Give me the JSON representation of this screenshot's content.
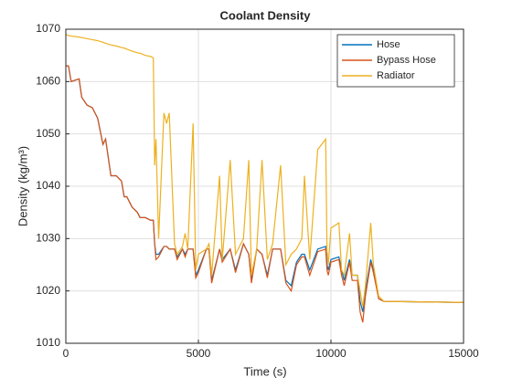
{
  "chart_data": {
    "type": "line",
    "title": "Coolant Density",
    "xlabel": "Time (s)",
    "ylabel": "Density (kg/m³)",
    "x": [
      0,
      100,
      200,
      500,
      600,
      800,
      1000,
      1200,
      1400,
      1500,
      1700,
      1900,
      2100,
      2200,
      2300,
      2400,
      2500,
      2700,
      2800,
      3000,
      3200,
      3300,
      3350,
      3400,
      3500,
      3700,
      3800,
      3900,
      4100,
      4200,
      4400,
      4500,
      4600,
      4800,
      4900,
      5000,
      5300,
      5400,
      5500,
      5800,
      5900,
      6200,
      6400,
      6700,
      6900,
      7000,
      7200,
      7400,
      7600,
      7800,
      8100,
      8300,
      8500,
      8700,
      8900,
      9000,
      9200,
      9500,
      9800,
      9850,
      9900,
      10000,
      10300,
      10400,
      10500,
      10700,
      10800,
      11000,
      11100,
      11200,
      11300,
      11500,
      11600,
      11800,
      12000,
      15000
    ],
    "series": [
      {
        "name": "Hose",
        "color": "#0072bd",
        "values": [
          1063,
          1063,
          1060,
          1060.5,
          1057,
          1055.5,
          1055,
          1053,
          1048,
          1049,
          1042,
          1042,
          1041,
          1038,
          1038,
          1037,
          1036,
          1035,
          1034,
          1034,
          1033.5,
          1033.5,
          1029,
          1027,
          1027,
          1028.5,
          1028.5,
          1028,
          1028,
          1026.5,
          1028,
          1027,
          1028,
          1028,
          1023,
          1024,
          1028,
          1028,
          1022,
          1028,
          1026,
          1028,
          1024,
          1029,
          1027,
          1022,
          1028,
          1027,
          1023,
          1028,
          1028,
          1022,
          1021,
          1025.5,
          1027,
          1027,
          1024,
          1028,
          1028.5,
          1025,
          1024,
          1026,
          1026.5,
          1024,
          1022,
          1026,
          1023,
          1023,
          1018,
          1016,
          1020,
          1026,
          1024,
          1018.5,
          1018,
          1017.8
        ]
      },
      {
        "name": "Bypass Hose",
        "color": "#d95319",
        "values": [
          1063,
          1063,
          1060,
          1060.5,
          1057,
          1055.5,
          1055,
          1053,
          1048,
          1049,
          1042,
          1042,
          1041,
          1038,
          1038,
          1037,
          1036,
          1035,
          1034,
          1034,
          1033.5,
          1033.5,
          1029,
          1026,
          1026.5,
          1028.5,
          1028.5,
          1028,
          1028,
          1026,
          1028,
          1026.5,
          1028,
          1028,
          1022.5,
          1023.5,
          1028,
          1028,
          1021.5,
          1028,
          1025.5,
          1028,
          1023.5,
          1029,
          1027,
          1021.5,
          1028,
          1027,
          1022.5,
          1028,
          1028,
          1021.5,
          1020,
          1025,
          1026.5,
          1026.5,
          1023,
          1027.5,
          1028,
          1024,
          1023,
          1025.5,
          1026,
          1023,
          1021,
          1025.5,
          1022,
          1022,
          1016,
          1014,
          1019,
          1025.5,
          1023.5,
          1018.5,
          1018,
          1017.8
        ]
      },
      {
        "name": "Radiator",
        "color": "#edb120",
        "values": [
          1069,
          1068.8,
          1068.7,
          1068.5,
          1068.4,
          1068.2,
          1068,
          1067.8,
          1067.5,
          1067.3,
          1067,
          1066.8,
          1066.5,
          1066.4,
          1066.2,
          1066,
          1065.8,
          1065.5,
          1065.4,
          1065,
          1064.8,
          1064.5,
          1044,
          1049,
          1030,
          1054,
          1052,
          1054,
          1029,
          1027,
          1028.5,
          1031,
          1028,
          1052,
          1024,
          1027,
          1028,
          1029,
          1023,
          1042,
          1026,
          1045,
          1027,
          1030,
          1045,
          1023,
          1028,
          1045,
          1026,
          1029,
          1044,
          1025,
          1027,
          1028,
          1030,
          1042,
          1026,
          1047,
          1049,
          1028,
          1025,
          1032,
          1033,
          1024,
          1023,
          1031,
          1023,
          1023,
          1020,
          1017,
          1021,
          1033,
          1025,
          1019,
          1018,
          1017.8
        ]
      }
    ],
    "xlim": [
      0,
      15000
    ],
    "xticks": [
      0,
      5000,
      10000,
      15000
    ],
    "ylim": [
      1010,
      1070
    ],
    "yticks": [
      1010,
      1020,
      1030,
      1040,
      1050,
      1060,
      1070
    ],
    "grid": true,
    "legend": "northeast"
  }
}
